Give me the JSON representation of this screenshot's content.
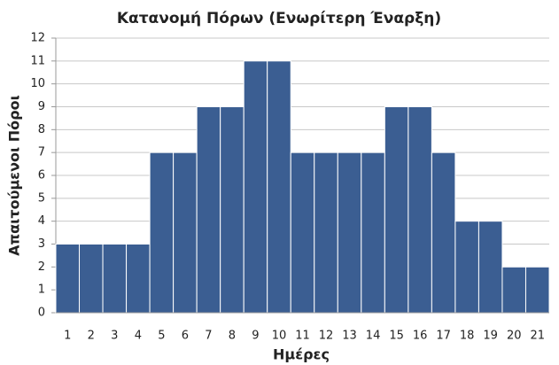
{
  "chart_data": {
    "type": "bar",
    "title": "Κατανομή Πόρων (Ενωρίτερη Έναρξη)",
    "x_label": "Ημέρες",
    "y_label": "Απαιτούμενοι Πόροι",
    "categories": [
      "1",
      "2",
      "3",
      "4",
      "5",
      "6",
      "7",
      "8",
      "9",
      "10",
      "11",
      "12",
      "13",
      "14",
      "15",
      "16",
      "17",
      "18",
      "19",
      "20",
      "21"
    ],
    "values": [
      3,
      3,
      3,
      3,
      7,
      7,
      9,
      9,
      11,
      11,
      7,
      7,
      7,
      7,
      9,
      9,
      7,
      4,
      4,
      2,
      2
    ],
    "color": "#3b5e92",
    "ylim": [
      0,
      12
    ],
    "yticks": [
      0,
      1,
      2,
      3,
      4,
      5,
      6,
      7,
      8,
      9,
      10,
      11,
      12
    ],
    "grid": true
  }
}
